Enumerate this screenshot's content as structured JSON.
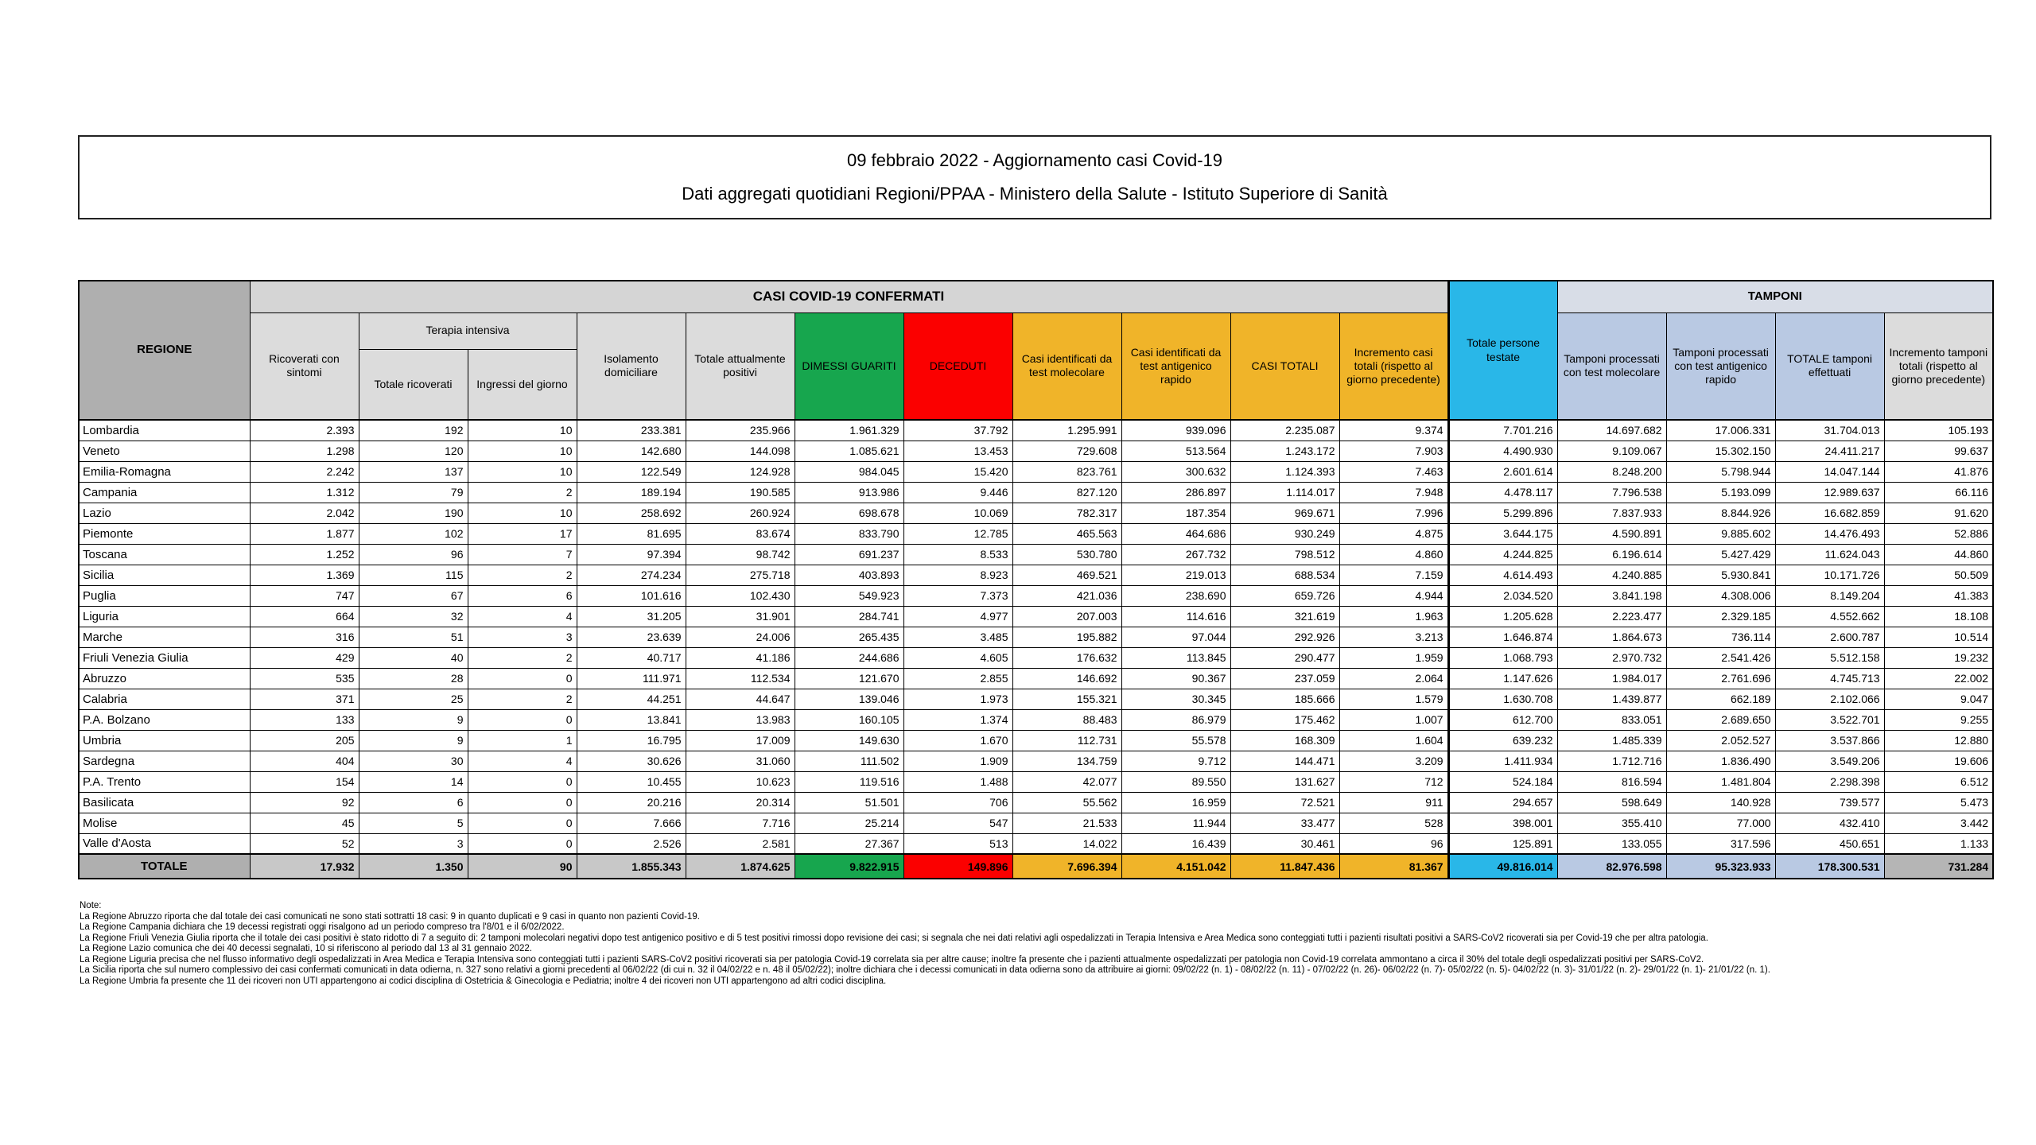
{
  "title": {
    "line1": "09 febbraio 2022 - Aggiornamento casi Covid-19",
    "line2": "Dati aggregati quotidiani Regioni/PPAA - Ministero della Salute - Istituto Superiore di Sanità"
  },
  "table": {
    "header": {
      "regione": "REGIONE",
      "casi_confermati": "CASI COVID-19 CONFERMATI",
      "tamponi_band": "TAMPONI",
      "terapia_intensiva": "Terapia intensiva",
      "cols": {
        "ricoverati": "Ricoverati con sintomi",
        "ti_totale": "Totale ricoverati",
        "ti_ingressi": "Ingressi del giorno",
        "isolamento": "Isolamento domiciliare",
        "attualmente_positivi": "Totale attualmente positivi",
        "dimessi_guariti": "DIMESSI GUARITI",
        "deceduti": "DECEDUTI",
        "casi_molecolare": "Casi identificati da test molecolare",
        "casi_antigenico": "Casi identificati da test antigenico rapido",
        "casi_totali": "CASI TOTALI",
        "incremento_casi": "Incremento casi totali (rispetto al giorno precedente)",
        "persone_testate": "Totale persone testate",
        "tamponi_molecolare": "Tamponi processati con test molecolare",
        "tamponi_antigenico": "Tamponi processati con test antigenico rapido",
        "tamponi_totale": "TOTALE tamponi effettuati",
        "incremento_tamponi": "Incremento tamponi totali (rispetto al giorno precedente)"
      }
    },
    "rows": [
      {
        "regione": "Lombardia",
        "values": [
          "2.393",
          "192",
          "10",
          "233.381",
          "235.966",
          "1.961.329",
          "37.792",
          "1.295.991",
          "939.096",
          "2.235.087",
          "9.374",
          "7.701.216",
          "14.697.682",
          "17.006.331",
          "31.704.013",
          "105.193"
        ]
      },
      {
        "regione": "Veneto",
        "values": [
          "1.298",
          "120",
          "10",
          "142.680",
          "144.098",
          "1.085.621",
          "13.453",
          "729.608",
          "513.564",
          "1.243.172",
          "7.903",
          "4.490.930",
          "9.109.067",
          "15.302.150",
          "24.411.217",
          "99.637"
        ]
      },
      {
        "regione": "Emilia-Romagna",
        "values": [
          "2.242",
          "137",
          "10",
          "122.549",
          "124.928",
          "984.045",
          "15.420",
          "823.761",
          "300.632",
          "1.124.393",
          "7.463",
          "2.601.614",
          "8.248.200",
          "5.798.944",
          "14.047.144",
          "41.876"
        ]
      },
      {
        "regione": "Campania",
        "values": [
          "1.312",
          "79",
          "2",
          "189.194",
          "190.585",
          "913.986",
          "9.446",
          "827.120",
          "286.897",
          "1.114.017",
          "7.948",
          "4.478.117",
          "7.796.538",
          "5.193.099",
          "12.989.637",
          "66.116"
        ]
      },
      {
        "regione": "Lazio",
        "values": [
          "2.042",
          "190",
          "10",
          "258.692",
          "260.924",
          "698.678",
          "10.069",
          "782.317",
          "187.354",
          "969.671",
          "7.996",
          "5.299.896",
          "7.837.933",
          "8.844.926",
          "16.682.859",
          "91.620"
        ]
      },
      {
        "regione": "Piemonte",
        "values": [
          "1.877",
          "102",
          "17",
          "81.695",
          "83.674",
          "833.790",
          "12.785",
          "465.563",
          "464.686",
          "930.249",
          "4.875",
          "3.644.175",
          "4.590.891",
          "9.885.602",
          "14.476.493",
          "52.886"
        ]
      },
      {
        "regione": "Toscana",
        "values": [
          "1.252",
          "96",
          "7",
          "97.394",
          "98.742",
          "691.237",
          "8.533",
          "530.780",
          "267.732",
          "798.512",
          "4.860",
          "4.244.825",
          "6.196.614",
          "5.427.429",
          "11.624.043",
          "44.860"
        ]
      },
      {
        "regione": "Sicilia",
        "values": [
          "1.369",
          "115",
          "2",
          "274.234",
          "275.718",
          "403.893",
          "8.923",
          "469.521",
          "219.013",
          "688.534",
          "7.159",
          "4.614.493",
          "4.240.885",
          "5.930.841",
          "10.171.726",
          "50.509"
        ]
      },
      {
        "regione": "Puglia",
        "values": [
          "747",
          "67",
          "6",
          "101.616",
          "102.430",
          "549.923",
          "7.373",
          "421.036",
          "238.690",
          "659.726",
          "4.944",
          "2.034.520",
          "3.841.198",
          "4.308.006",
          "8.149.204",
          "41.383"
        ]
      },
      {
        "regione": "Liguria",
        "values": [
          "664",
          "32",
          "4",
          "31.205",
          "31.901",
          "284.741",
          "4.977",
          "207.003",
          "114.616",
          "321.619",
          "1.963",
          "1.205.628",
          "2.223.477",
          "2.329.185",
          "4.552.662",
          "18.108"
        ]
      },
      {
        "regione": "Marche",
        "values": [
          "316",
          "51",
          "3",
          "23.639",
          "24.006",
          "265.435",
          "3.485",
          "195.882",
          "97.044",
          "292.926",
          "3.213",
          "1.646.874",
          "1.864.673",
          "736.114",
          "2.600.787",
          "10.514"
        ]
      },
      {
        "regione": "Friuli Venezia Giulia",
        "values": [
          "429",
          "40",
          "2",
          "40.717",
          "41.186",
          "244.686",
          "4.605",
          "176.632",
          "113.845",
          "290.477",
          "1.959",
          "1.068.793",
          "2.970.732",
          "2.541.426",
          "5.512.158",
          "19.232"
        ]
      },
      {
        "regione": "Abruzzo",
        "values": [
          "535",
          "28",
          "0",
          "111.971",
          "112.534",
          "121.670",
          "2.855",
          "146.692",
          "90.367",
          "237.059",
          "2.064",
          "1.147.626",
          "1.984.017",
          "2.761.696",
          "4.745.713",
          "22.002"
        ]
      },
      {
        "regione": "Calabria",
        "values": [
          "371",
          "25",
          "2",
          "44.251",
          "44.647",
          "139.046",
          "1.973",
          "155.321",
          "30.345",
          "185.666",
          "1.579",
          "1.630.708",
          "1.439.877",
          "662.189",
          "2.102.066",
          "9.047"
        ]
      },
      {
        "regione": "P.A. Bolzano",
        "values": [
          "133",
          "9",
          "0",
          "13.841",
          "13.983",
          "160.105",
          "1.374",
          "88.483",
          "86.979",
          "175.462",
          "1.007",
          "612.700",
          "833.051",
          "2.689.650",
          "3.522.701",
          "9.255"
        ]
      },
      {
        "regione": "Umbria",
        "values": [
          "205",
          "9",
          "1",
          "16.795",
          "17.009",
          "149.630",
          "1.670",
          "112.731",
          "55.578",
          "168.309",
          "1.604",
          "639.232",
          "1.485.339",
          "2.052.527",
          "3.537.866",
          "12.880"
        ]
      },
      {
        "regione": "Sardegna",
        "values": [
          "404",
          "30",
          "4",
          "30.626",
          "31.060",
          "111.502",
          "1.909",
          "134.759",
          "9.712",
          "144.471",
          "3.209",
          "1.411.934",
          "1.712.716",
          "1.836.490",
          "3.549.206",
          "19.606"
        ]
      },
      {
        "regione": "P.A. Trento",
        "values": [
          "154",
          "14",
          "0",
          "10.455",
          "10.623",
          "119.516",
          "1.488",
          "42.077",
          "89.550",
          "131.627",
          "712",
          "524.184",
          "816.594",
          "1.481.804",
          "2.298.398",
          "6.512"
        ]
      },
      {
        "regione": "Basilicata",
        "values": [
          "92",
          "6",
          "0",
          "20.216",
          "20.314",
          "51.501",
          "706",
          "55.562",
          "16.959",
          "72.521",
          "911",
          "294.657",
          "598.649",
          "140.928",
          "739.577",
          "5.473"
        ]
      },
      {
        "regione": "Molise",
        "values": [
          "45",
          "5",
          "0",
          "7.666",
          "7.716",
          "25.214",
          "547",
          "21.533",
          "11.944",
          "33.477",
          "528",
          "398.001",
          "355.410",
          "77.000",
          "432.410",
          "3.442"
        ]
      },
      {
        "regione": "Valle d'Aosta",
        "values": [
          "52",
          "3",
          "0",
          "2.526",
          "2.581",
          "27.367",
          "513",
          "14.022",
          "16.439",
          "30.461",
          "96",
          "125.891",
          "133.055",
          "317.596",
          "450.651",
          "1.133"
        ]
      }
    ],
    "totale": {
      "regione": "TOTALE",
      "values": [
        "17.932",
        "1.350",
        "90",
        "1.855.343",
        "1.874.625",
        "9.822.915",
        "149.896",
        "7.696.394",
        "4.151.042",
        "11.847.436",
        "81.367",
        "49.816.014",
        "82.976.598",
        "95.323.933",
        "178.300.531",
        "731.284"
      ]
    }
  },
  "notes": {
    "heading": "Note:",
    "items": [
      "La Regione Abruzzo  riporta che dal totale dei casi comunicati ne sono stati sottratti 18 casi: 9 in quanto duplicati e 9 casi in quanto non pazienti Covid-19.",
      "La Regione Campania dichiara che 19 decessi registrati oggi risalgono ad un periodo compreso tra l'8/01 e il 6/02/2022.",
      "La Regione Friuli Venezia Giulia riporta che il totale dei casi positivi è stato ridotto di 7 a seguito di: 2 tamponi molecolari negativi dopo test antigenico positivo e di 5 test positivi rimossi dopo revisione dei casi; si segnala che nei dati relativi agli ospedalizzati in Terapia Intensiva e Area Medica sono conteggiati tutti i pazienti risultati positivi a SARS-CoV2 ricoverati sia per Covid-19 che per altra patologia.",
      "La Regione Lazio comunica che dei 40 decessi segnalati, 10 si riferiscono al periodo dal 13 al 31 gennaio 2022.",
      "La Regione Liguria precisa che nel flusso informativo degli ospedalizzati in Area Medica e Terapia Intensiva sono conteggiati tutti i pazienti SARS-CoV2 positivi ricoverati sia per patologia Covid-19 correlata sia per altre cause; inoltre fa presente che i pazienti attualmente ospedalizzati per patologia non Covid-19 correlata ammontano a circa il 30% del totale degli ospedalizzati positivi per SARS-CoV2.",
      "La Sicilia riporta che sul numero complessivo dei casi confermati comunicati in data odierna, n. 327 sono relativi a giorni precedenti al 06/02/22 (di cui n. 32 il 04/02/22 e n. 48 il 05/02/22); inoltre dichiara che i decessi comunicati in data odierna sono da attribuire ai giorni:  09/02/22 (n. 1) - 08/02/22 (n. 11) - 07/02/22 (n. 26)-  06/02/22  (n. 7)- 05/02/22 (n. 5)- 04/02/22 (n. 3)- 31/01/22 (n. 2)- 29/01/22 (n. 1)- 21/01/22 (n. 1).",
      "La Regione Umbria fa presente che 11 dei ricoveri non UTI appartengono ai codici disciplina di Ostetricia & Ginecologia e Pediatria; inoltre  4 dei ricoveri non UTI appartengono ad altri codici disciplina."
    ]
  },
  "colors": {
    "green_guariti": "#17A64E",
    "red_deceduti": "#FB0000",
    "gold_casi": "#F0B429",
    "cyan_testate": "#29B7E8",
    "lightblue_tamponi": "#B9C9E3",
    "gray_header": "#DCDCDC",
    "gray_regione": "#AFAFAF"
  }
}
